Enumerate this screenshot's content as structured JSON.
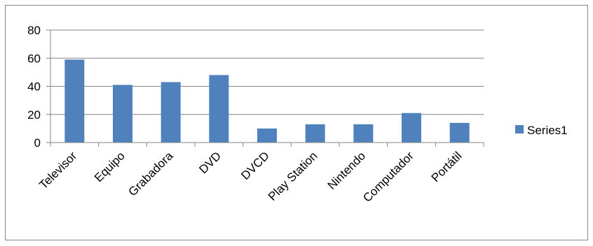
{
  "chart_data": {
    "type": "bar",
    "title": "",
    "xlabel": "",
    "ylabel": "",
    "categories": [
      "Televisor",
      "Equipo",
      "Grabadora",
      "DVD",
      "DVCD",
      "Play Station",
      "Nintendo",
      "Computador",
      "Portátil"
    ],
    "series": [
      {
        "name": "Series1",
        "values": [
          59,
          41,
          43,
          48,
          10,
          13,
          13,
          21,
          14
        ],
        "color": "#4f81bd"
      }
    ],
    "ylim": [
      0,
      80
    ],
    "yticks": [
      0,
      20,
      40,
      60,
      80
    ],
    "grid": true,
    "legend_position": "right"
  }
}
